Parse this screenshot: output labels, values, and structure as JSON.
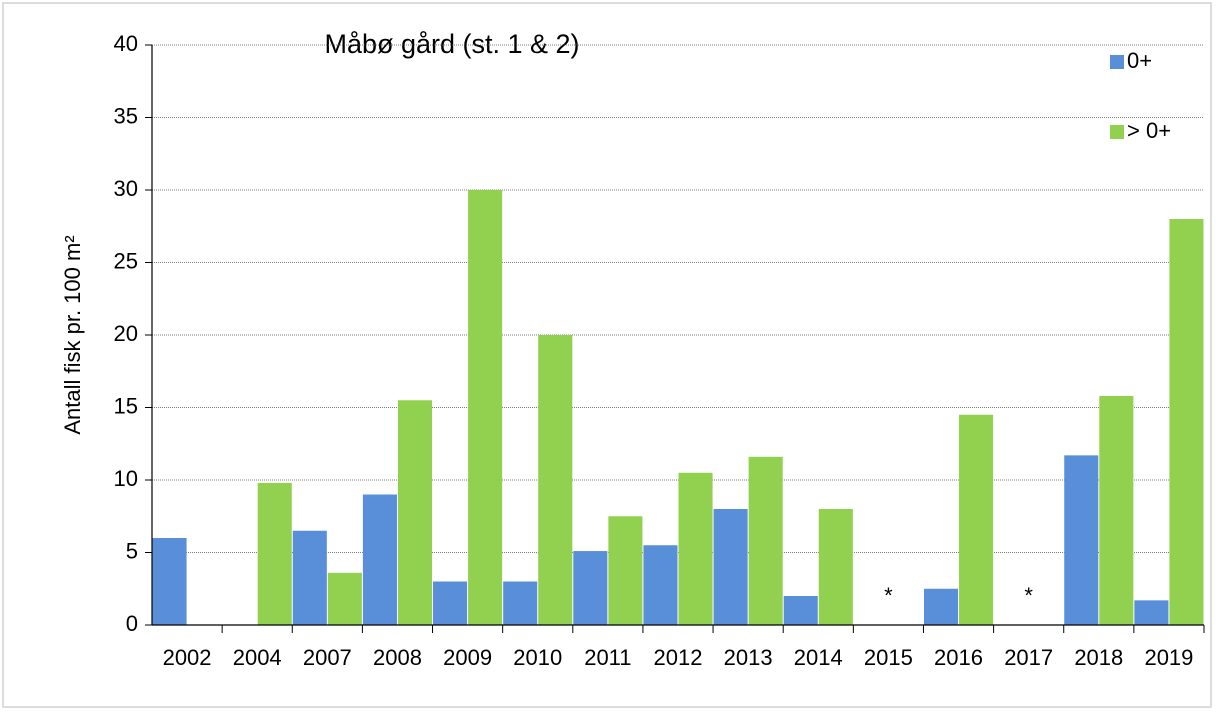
{
  "chart_data": {
    "type": "bar",
    "title": "Måbø gård (st. 1 & 2)",
    "y_label": "Antall fisk pr. 100 m²",
    "categories": [
      "2002",
      "2004",
      "2007",
      "2008",
      "2009",
      "2010",
      "2011",
      "2012",
      "2013",
      "2014",
      "2015",
      "2016",
      "2017",
      "2018",
      "2019"
    ],
    "series": [
      {
        "name": "0+",
        "color": "#588fd8",
        "values": [
          6,
          null,
          6.5,
          9,
          3,
          3,
          5.1,
          5.5,
          8,
          2,
          null,
          2.5,
          null,
          11.7,
          1.7
        ]
      },
      {
        "name": "> 0+",
        "color": "#92d050",
        "values": [
          null,
          9.8,
          3.6,
          15.5,
          30,
          20,
          7.5,
          10.5,
          11.6,
          8,
          null,
          14.5,
          null,
          15.8,
          28
        ]
      }
    ],
    "annotations": [
      {
        "x": "2015",
        "text": "*"
      },
      {
        "x": "2017",
        "text": "*"
      }
    ],
    "ylim": [
      0,
      40
    ],
    "yticks": [
      0,
      5,
      10,
      15,
      20,
      25,
      30,
      35,
      40
    ],
    "grid": true,
    "legend": "top-right"
  }
}
